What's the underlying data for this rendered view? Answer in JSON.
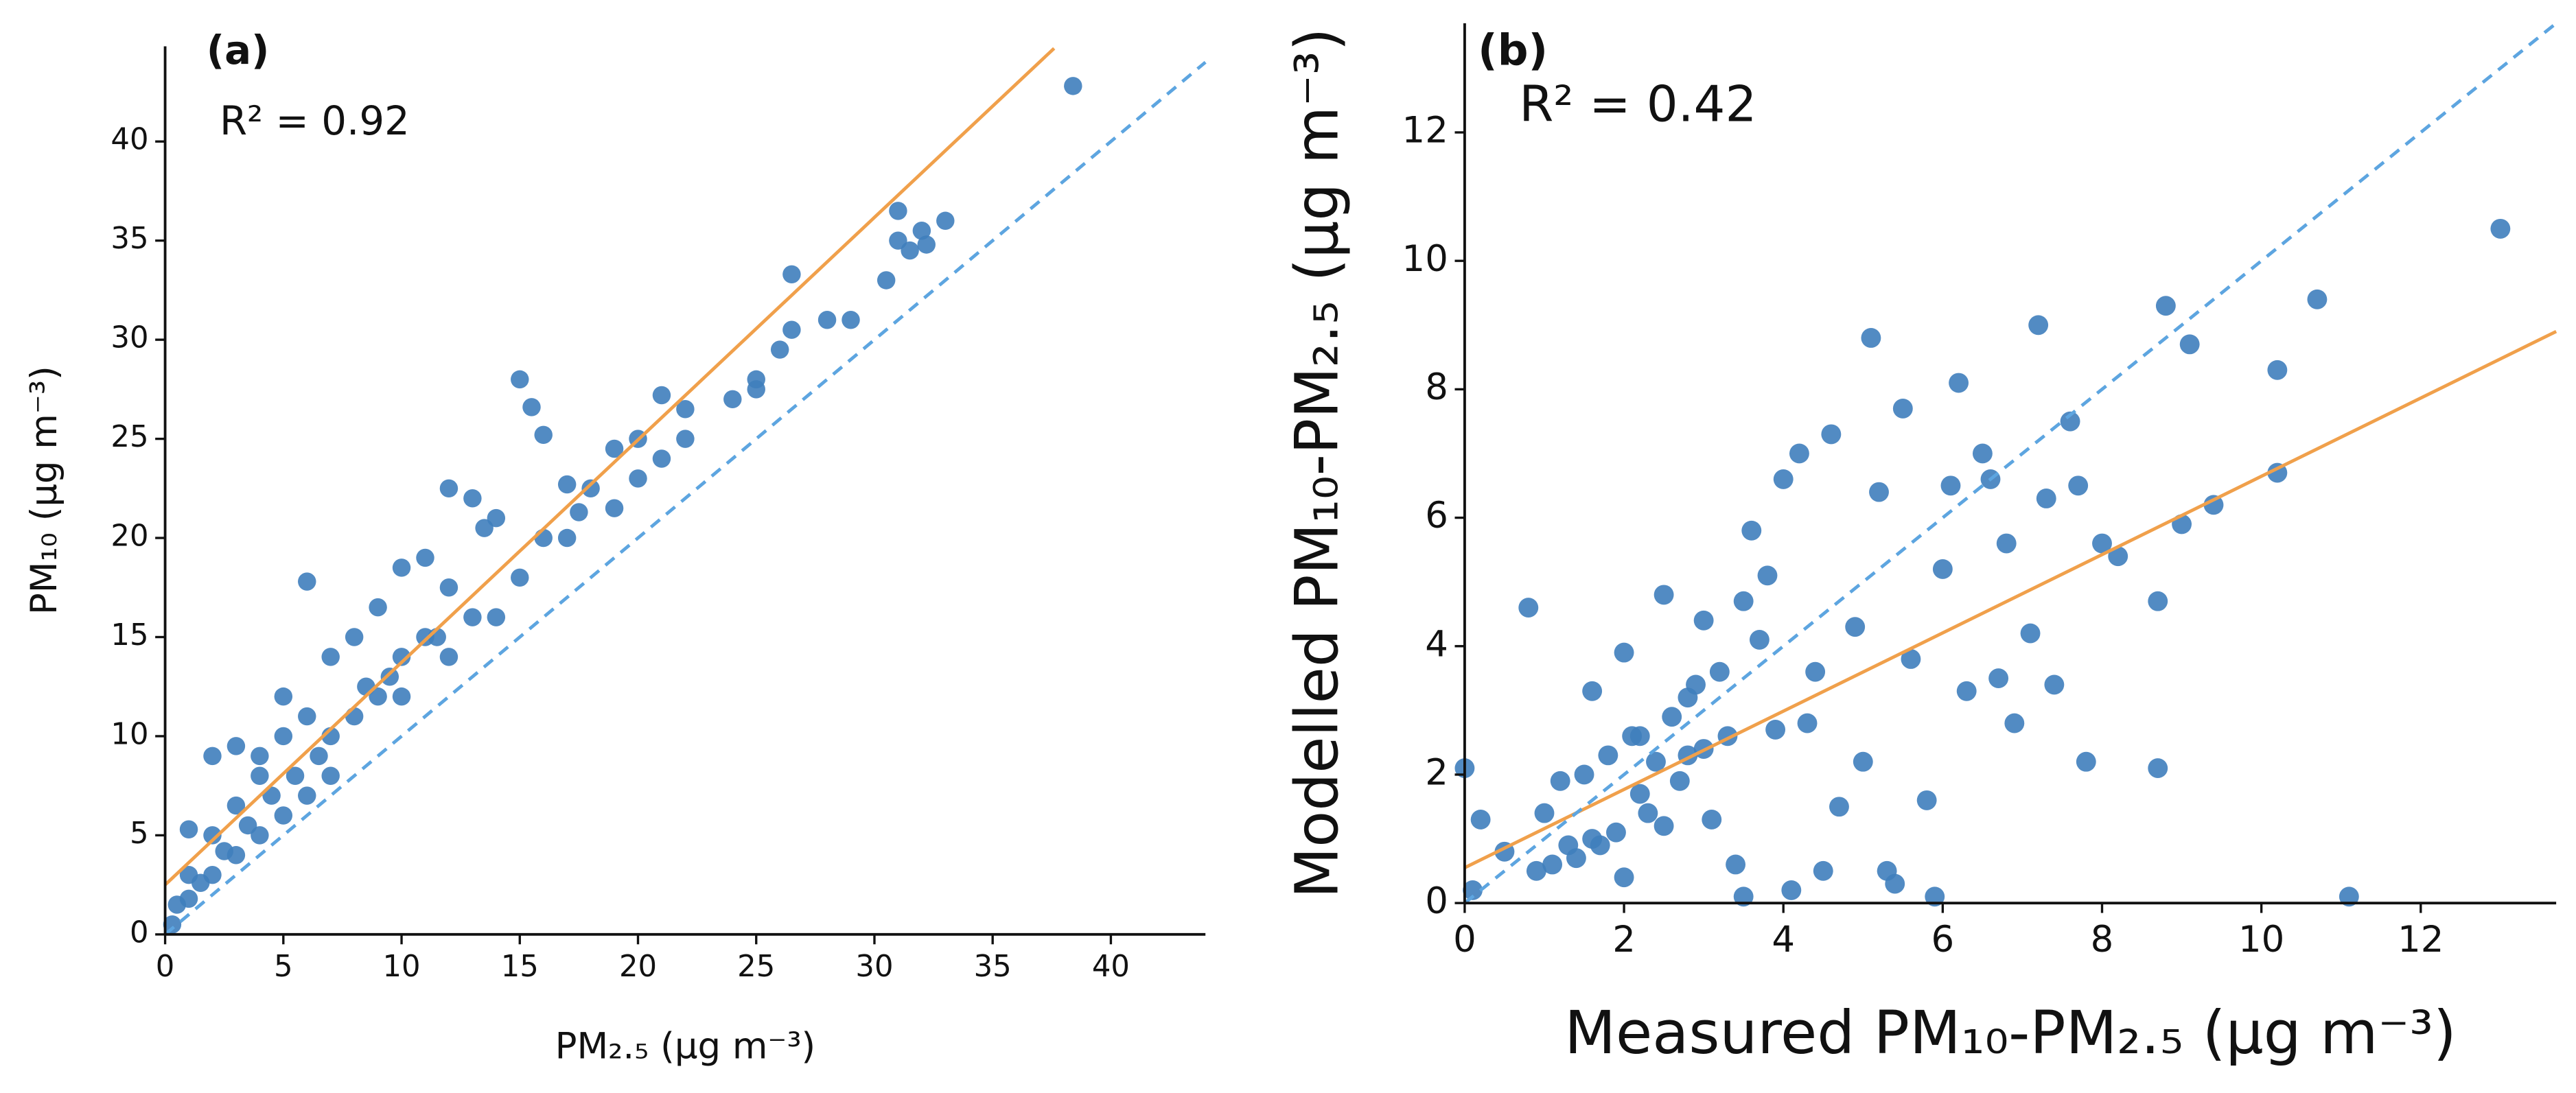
{
  "chart_data": [
    {
      "type": "scatter",
      "panel_label": "(a)",
      "annotation": "R² = 0.92",
      "xlabel": "PM₂.₅ (μg m⁻³)",
      "ylabel": "PM₁₀ (μg m⁻³)",
      "xlim": [
        0,
        44
      ],
      "ylim": [
        0,
        44.8
      ],
      "xticks": [
        0,
        5,
        10,
        15,
        20,
        25,
        30,
        35,
        40
      ],
      "yticks": [
        0,
        5,
        10,
        15,
        20,
        25,
        30,
        35,
        40
      ],
      "color": "#3f7ebc",
      "x": [
        38.4,
        31,
        30.5,
        31,
        32,
        33,
        31.5,
        32.2,
        26.5,
        26.5,
        28,
        26,
        25,
        24,
        22,
        21,
        20,
        21,
        19,
        18,
        17,
        15,
        15.5,
        16,
        17.5,
        14,
        13,
        12,
        13.5,
        11,
        10,
        12,
        11,
        10,
        9,
        8,
        6,
        7,
        5,
        4,
        3,
        2,
        1,
        0.5,
        0.3,
        1,
        2,
        3,
        4,
        5,
        6,
        7,
        8,
        9,
        10,
        15,
        16,
        14,
        13,
        12,
        20,
        22,
        25,
        29,
        7,
        6,
        5,
        4,
        3,
        2,
        1,
        17,
        19,
        8.5,
        9.5,
        11.5,
        6.5,
        5.5,
        4.5,
        3.5,
        2.5,
        1.5
      ],
      "y": [
        42.8,
        36.5,
        33,
        35,
        35.5,
        36,
        34.5,
        34.8,
        33.3,
        30.5,
        31,
        29.5,
        27.5,
        27,
        26.5,
        27.2,
        25,
        24,
        24.5,
        22.5,
        22.7,
        28,
        26.6,
        25.2,
        21.3,
        21,
        22,
        22.5,
        20.5,
        19,
        18.5,
        17.5,
        15,
        14,
        16.5,
        15,
        17.8,
        14,
        10,
        8,
        6.5,
        5,
        3,
        1.5,
        0.5,
        5.3,
        9,
        9.5,
        9,
        12,
        11,
        10,
        11,
        12,
        12,
        18,
        20,
        16,
        16,
        14,
        23,
        25,
        28,
        31,
        8,
        7,
        6,
        5,
        4,
        3,
        1.8,
        20,
        21.5,
        12.5,
        13,
        15,
        9,
        8,
        7,
        5.5,
        4.2,
        2.6
      ],
      "lines": [
        {
          "x": [
            0,
            37.6
          ],
          "y": [
            2.5,
            44.7
          ],
          "color": "#f0a04b",
          "dash": false
        },
        {
          "x": [
            0,
            44
          ],
          "y": [
            0,
            44
          ],
          "color": "#5da5e0",
          "dash": true
        }
      ]
    },
    {
      "type": "scatter",
      "panel_label": "(b)",
      "annotation": "R² = 0.42",
      "xlabel": "Measured PM₁₀-PM₂.₅ (μg m⁻³)",
      "ylabel": "Modelled PM₁₀-PM₂.₅ (μg m⁻³)",
      "xlim": [
        0,
        13.7
      ],
      "ylim": [
        0,
        13.7
      ],
      "xticks": [
        0,
        2,
        4,
        6,
        8,
        10,
        12
      ],
      "yticks": [
        0,
        2,
        4,
        6,
        8,
        10,
        12
      ],
      "color": "#3f7ebc",
      "x": [
        13,
        10.7,
        10.2,
        10.2,
        8.8,
        8.7,
        9.1,
        9.4,
        9,
        7.2,
        7.6,
        7.7,
        8.2,
        8,
        7.3,
        6.5,
        6.6,
        6.2,
        6.8,
        5.1,
        5.5,
        5.2,
        4.6,
        4.2,
        4,
        3.8,
        3.5,
        3,
        3.2,
        2.5,
        2.8,
        2,
        2.2,
        1.8,
        1.5,
        1.2,
        1,
        0.8,
        0.5,
        0.2,
        0,
        0.1,
        11.1,
        7.8,
        8.7,
        6.1,
        5.6,
        4.9,
        4.4,
        3.6,
        3.3,
        2.9,
        2.6,
        2.3,
        2.1,
        1.9,
        1.7,
        1.6,
        1.4,
        2.4,
        3.1,
        3.9,
        4.7,
        5.8,
        6.9,
        7.1,
        6.3,
        5.4,
        4.1,
        3.4,
        2.7,
        1.3,
        1.1,
        2,
        2.5,
        3,
        3.5,
        4.5,
        5,
        5.9,
        6.7,
        0.9,
        1.6,
        2.2,
        2.8,
        3.7,
        4.3,
        5.3,
        6,
        7.4
      ],
      "y": [
        10.5,
        9.4,
        8.3,
        6.7,
        9.3,
        2.1,
        8.7,
        6.2,
        5.9,
        9,
        7.5,
        6.5,
        5.4,
        5.6,
        6.3,
        7,
        6.6,
        8.1,
        5.6,
        8.8,
        7.7,
        6.4,
        7.3,
        7,
        6.6,
        5.1,
        4.7,
        4.4,
        3.6,
        4.8,
        3.2,
        3.9,
        2.6,
        2.3,
        2,
        1.9,
        1.4,
        4.6,
        0.8,
        1.3,
        2.1,
        0.2,
        0.1,
        2.2,
        4.7,
        6.5,
        3.8,
        4.3,
        3.6,
        5.8,
        2.6,
        3.4,
        2.9,
        1.4,
        2.6,
        1.1,
        0.9,
        3.3,
        0.7,
        2.2,
        1.3,
        2.7,
        1.5,
        1.6,
        2.8,
        4.2,
        3.3,
        0.3,
        0.2,
        0.6,
        1.9,
        0.9,
        0.6,
        0.4,
        1.2,
        2.4,
        0.1,
        0.5,
        2.2,
        0.1,
        3.5,
        0.5,
        1,
        1.7,
        2.3,
        4.1,
        2.8,
        0.5,
        5.2,
        3.4
      ],
      "lines": [
        {
          "x": [
            0,
            13.7
          ],
          "y": [
            0.55,
            8.9
          ],
          "color": "#f0a04b",
          "dash": false
        },
        {
          "x": [
            0,
            13.7
          ],
          "y": [
            0,
            13.7
          ],
          "color": "#5da5e0",
          "dash": true
        }
      ]
    }
  ]
}
